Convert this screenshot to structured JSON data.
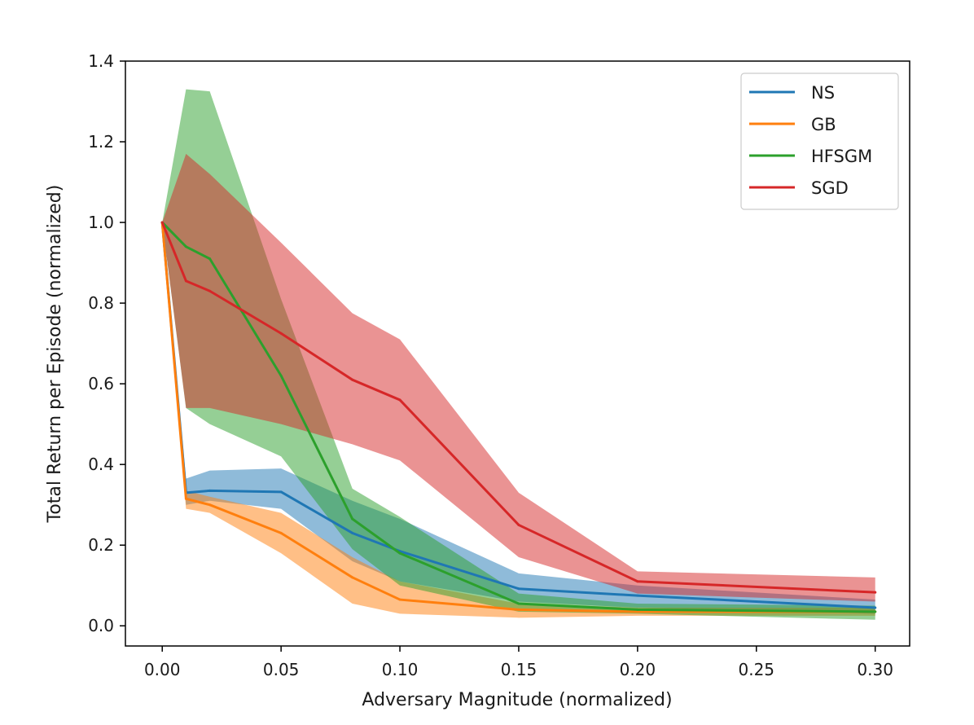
{
  "chart_data": {
    "type": "line",
    "title": "",
    "xlabel": "Adversary Magnitude (normalized)",
    "ylabel": "Total Return per Episode (normalized)",
    "xlim": [
      -0.0155,
      0.3145
    ],
    "ylim": [
      -0.05,
      1.4
    ],
    "xticks": [
      0.0,
      0.05,
      0.1,
      0.15,
      0.2,
      0.25,
      0.3
    ],
    "xtick_labels": [
      "0.00",
      "0.05",
      "0.10",
      "0.15",
      "0.20",
      "0.25",
      "0.30"
    ],
    "yticks": [
      0.0,
      0.2,
      0.4,
      0.6,
      0.8,
      1.0,
      1.2,
      1.4
    ],
    "ytick_labels": [
      "0.0",
      "0.2",
      "0.4",
      "0.6",
      "0.8",
      "1.0",
      "1.2",
      "1.4"
    ],
    "grid": false,
    "legend_position": "top-right",
    "x": [
      0.0,
      0.01,
      0.02,
      0.05,
      0.08,
      0.1,
      0.15,
      0.2,
      0.3
    ],
    "series": [
      {
        "name": "NS",
        "color": "#1f77b4",
        "values": [
          1.0,
          0.33,
          0.335,
          0.332,
          0.23,
          0.185,
          0.092,
          0.075,
          0.045
        ],
        "lower": [
          1.0,
          0.3,
          0.31,
          0.29,
          0.16,
          0.11,
          0.06,
          0.045,
          0.03
        ],
        "upper": [
          1.0,
          0.365,
          0.385,
          0.39,
          0.31,
          0.265,
          0.13,
          0.1,
          0.065
        ]
      },
      {
        "name": "GB",
        "color": "#ff7f0e",
        "values": [
          1.0,
          0.315,
          0.3,
          0.23,
          0.12,
          0.065,
          0.04,
          0.035,
          0.035
        ],
        "lower": [
          1.0,
          0.29,
          0.28,
          0.18,
          0.055,
          0.03,
          0.02,
          0.025,
          0.025
        ],
        "upper": [
          1.0,
          0.335,
          0.32,
          0.28,
          0.17,
          0.11,
          0.055,
          0.045,
          0.045
        ]
      },
      {
        "name": "HFSGM",
        "color": "#2ca02c",
        "values": [
          1.0,
          0.94,
          0.91,
          0.62,
          0.265,
          0.18,
          0.055,
          0.04,
          0.035
        ],
        "lower": [
          1.0,
          0.54,
          0.5,
          0.42,
          0.19,
          0.1,
          0.035,
          0.03,
          0.015
        ],
        "upper": [
          1.0,
          1.33,
          1.325,
          0.81,
          0.34,
          0.27,
          0.08,
          0.055,
          0.05
        ]
      },
      {
        "name": "SGD",
        "color": "#d62728",
        "values": [
          1.0,
          0.855,
          0.83,
          0.725,
          0.61,
          0.56,
          0.25,
          0.11,
          0.083
        ],
        "lower": [
          1.0,
          0.54,
          0.54,
          0.5,
          0.45,
          0.41,
          0.17,
          0.08,
          0.06
        ],
        "upper": [
          1.0,
          1.17,
          1.12,
          0.95,
          0.775,
          0.71,
          0.33,
          0.135,
          0.12
        ]
      }
    ]
  }
}
